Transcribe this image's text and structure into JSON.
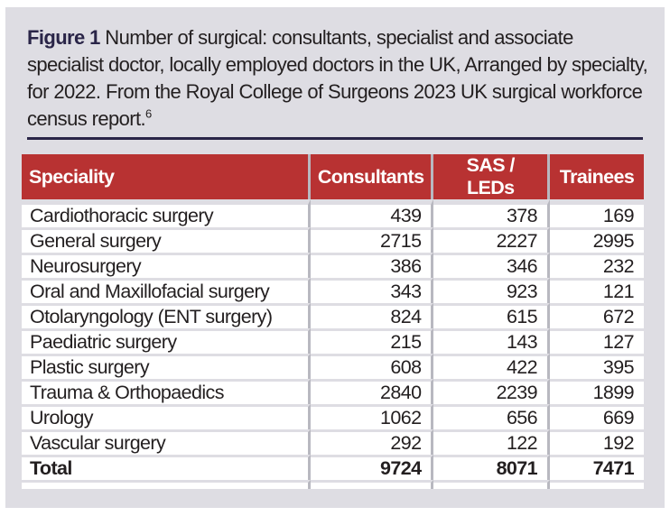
{
  "caption": {
    "label": "Figure 1",
    "text": "Number of surgical: consultants, specialist and associate specialist doctor, locally employed doctors in the UK, Arranged by specialty, for 2022. From the Royal College of Surgeons 2023 UK surgical workforce census report.",
    "ref": "6"
  },
  "table": {
    "headers": [
      "Speciality",
      "Consultants",
      "SAS / LEDs",
      "Trainees"
    ],
    "rows": [
      [
        "Cardiothoracic surgery",
        "439",
        "378",
        "169"
      ],
      [
        "General surgery",
        "2715",
        "2227",
        "2995"
      ],
      [
        "Neurosurgery",
        "386",
        "346",
        "232"
      ],
      [
        "Oral and Maxillofacial surgery",
        "343",
        "923",
        "121"
      ],
      [
        "Otolaryngology (ENT surgery)",
        "824",
        "615",
        "672"
      ],
      [
        "Paediatric surgery",
        "215",
        "143",
        "127"
      ],
      [
        "Plastic surgery",
        "608",
        "422",
        "395"
      ],
      [
        "Trauma & Orthopaedics",
        "2840",
        "2239",
        "1899"
      ],
      [
        "Urology",
        "1062",
        "656",
        "669"
      ],
      [
        "Vascular surgery",
        "292",
        "122",
        "192"
      ]
    ],
    "total": [
      "Total",
      "9724",
      "8071",
      "7471"
    ]
  },
  "colors": {
    "header": "#b83232",
    "panel": "#dedde3",
    "title": "#2a2548"
  }
}
